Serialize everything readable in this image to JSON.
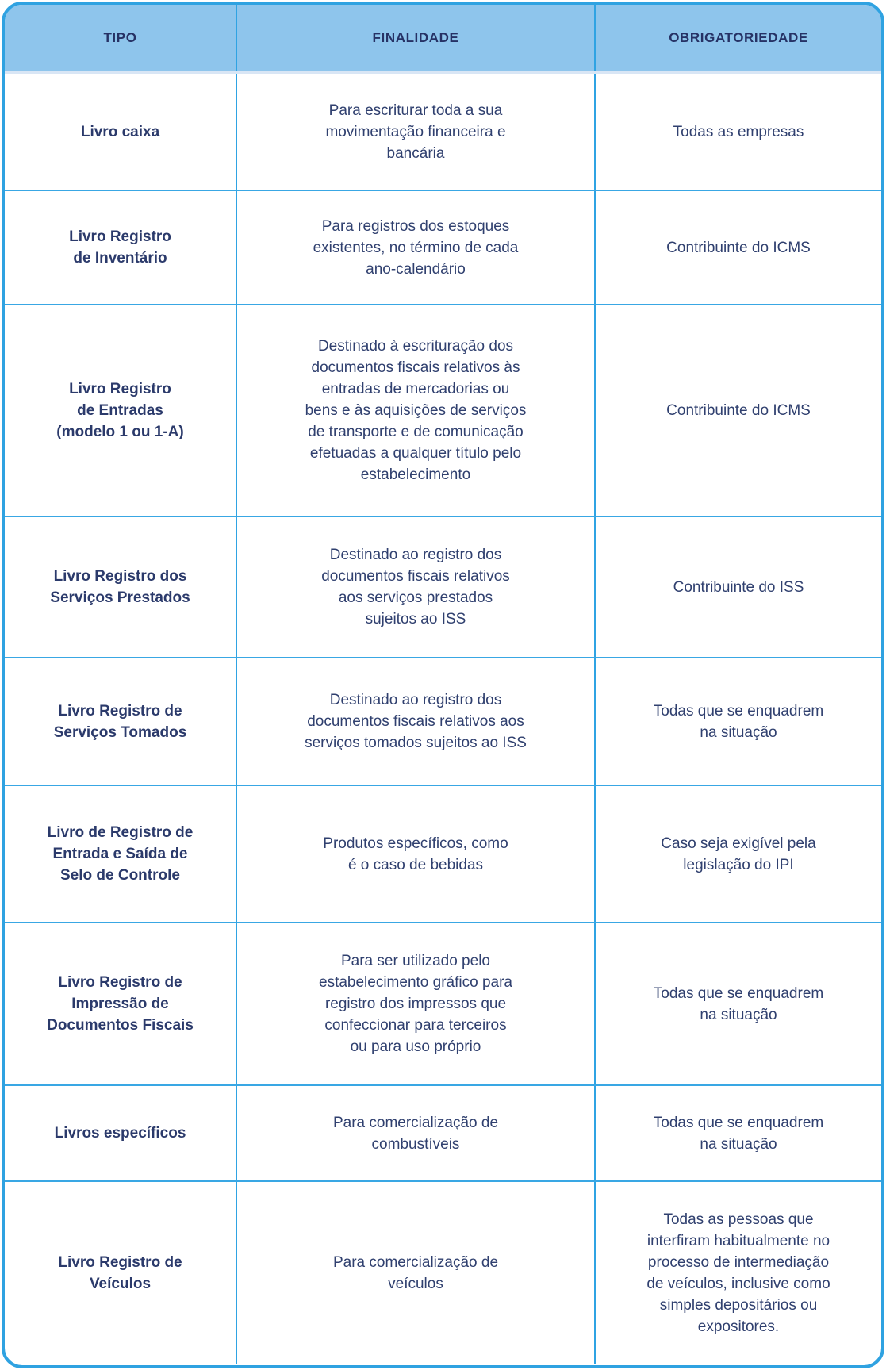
{
  "colors": {
    "header_bg": "#8ec5ec",
    "grid_line": "#2fa3e3",
    "outer_border": "#2fa2e1",
    "header_text": "#263265",
    "body_text": "#30406f",
    "cell_bg": "#ffffff"
  },
  "chart_data": {
    "type": "table",
    "title": "",
    "columns": [
      "TIPO",
      "FINALIDADE",
      "OBRIGATORIEDADE"
    ],
    "rows": [
      [
        "Livro caixa",
        "Para escriturar toda a sua\nmovimentação financeira e\nbancária",
        "Todas as empresas"
      ],
      [
        "Livro Registro\nde Inventário",
        "Para registros dos estoques\nexistentes, no término de cada\nano-calendário",
        "Contribuinte do ICMS"
      ],
      [
        "Livro Registro\nde Entradas\n(modelo 1 ou 1-A)",
        "Destinado à escrituração dos\ndocumentos fiscais relativos às\nentradas de mercadorias ou\nbens e às aquisições de serviços\nde transporte e de comunicação\nefetuadas a qualquer título pelo\nestabelecimento",
        "Contribuinte do ICMS"
      ],
      [
        "Livro Registro dos\nServiços Prestados",
        "Destinado ao registro dos\ndocumentos fiscais relativos\naos serviços prestados\nsujeitos ao ISS",
        "Contribuinte do ISS"
      ],
      [
        "Livro Registro de\nServiços Tomados",
        "Destinado ao registro dos\ndocumentos fiscais relativos aos\nserviços tomados sujeitos ao ISS",
        "Todas que se enquadrem\nna situação"
      ],
      [
        "Livro de Registro de\nEntrada e Saída de\nSelo de Controle",
        "Produtos específicos, como\né o caso de bebidas",
        "Caso seja exigível pela\nlegislação do IPI"
      ],
      [
        "Livro Registro de\nImpressão de\nDocumentos Fiscais",
        "Para ser utilizado pelo\nestabelecimento gráfico para\nregistro dos impressos que\nconfeccionar para terceiros\nou para uso próprio",
        "Todas que se enquadrem\nna situação"
      ],
      [
        "Livros específicos",
        "Para comercialização de\ncombustíveis",
        "Todas que se enquadrem\nna situação"
      ],
      [
        "Livro Registro de\nVeículos",
        "Para comercialização de\nveículos",
        "Todas as pessoas que\ninterfiram habitualmente no\nprocesso de intermediação\nde veículos, inclusive como\nsimples depositários ou\nexpositores."
      ]
    ]
  }
}
